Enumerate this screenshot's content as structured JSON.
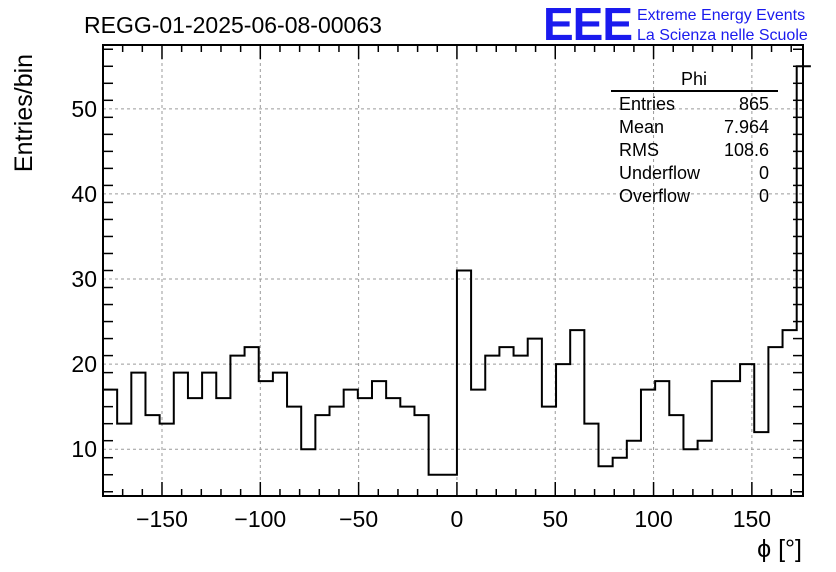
{
  "chart_data": {
    "type": "bar",
    "title": "REGG-01-2025-06-08-00063",
    "xlabel": "ϕ [°]",
    "ylabel": "Entries/bin",
    "xlim": [
      -180,
      176
    ],
    "ylim": [
      4.5,
      57.5
    ],
    "xticks": [
      -150,
      -100,
      -50,
      0,
      50,
      100,
      150
    ],
    "xtick_labels": [
      "−150",
      "−100",
      "−50",
      "0",
      "50",
      "100",
      "150"
    ],
    "yticks": [
      10,
      20,
      30,
      40,
      50
    ],
    "grid": true,
    "bin_width": 7.2,
    "bin_start": -180,
    "values": [
      17,
      13,
      19,
      14,
      13,
      19,
      16,
      19,
      16,
      21,
      22,
      18,
      19,
      15,
      10,
      14,
      15,
      17,
      16,
      18,
      16,
      15,
      14,
      7,
      7,
      31,
      17,
      21,
      22,
      21,
      23,
      15,
      20,
      24,
      13,
      8,
      9,
      11,
      17,
      18,
      14,
      10,
      11,
      18,
      18,
      20,
      12,
      22,
      24,
      55
    ],
    "stats": {
      "name": "Phi",
      "rows": [
        {
          "label": "Entries",
          "value": "865"
        },
        {
          "label": "Mean",
          "value": "7.964"
        },
        {
          "label": "RMS",
          "value": "108.6"
        },
        {
          "label": "Underflow",
          "value": "0"
        },
        {
          "label": "Overflow",
          "value": "0"
        }
      ]
    }
  },
  "logo": {
    "mark": "EEE",
    "line1": "Extreme Energy Events",
    "line2": "La Scienza nelle Scuole"
  },
  "colors": {
    "logo": "#1a1aee",
    "line": "#000000",
    "grid": "#9a9a9a"
  }
}
